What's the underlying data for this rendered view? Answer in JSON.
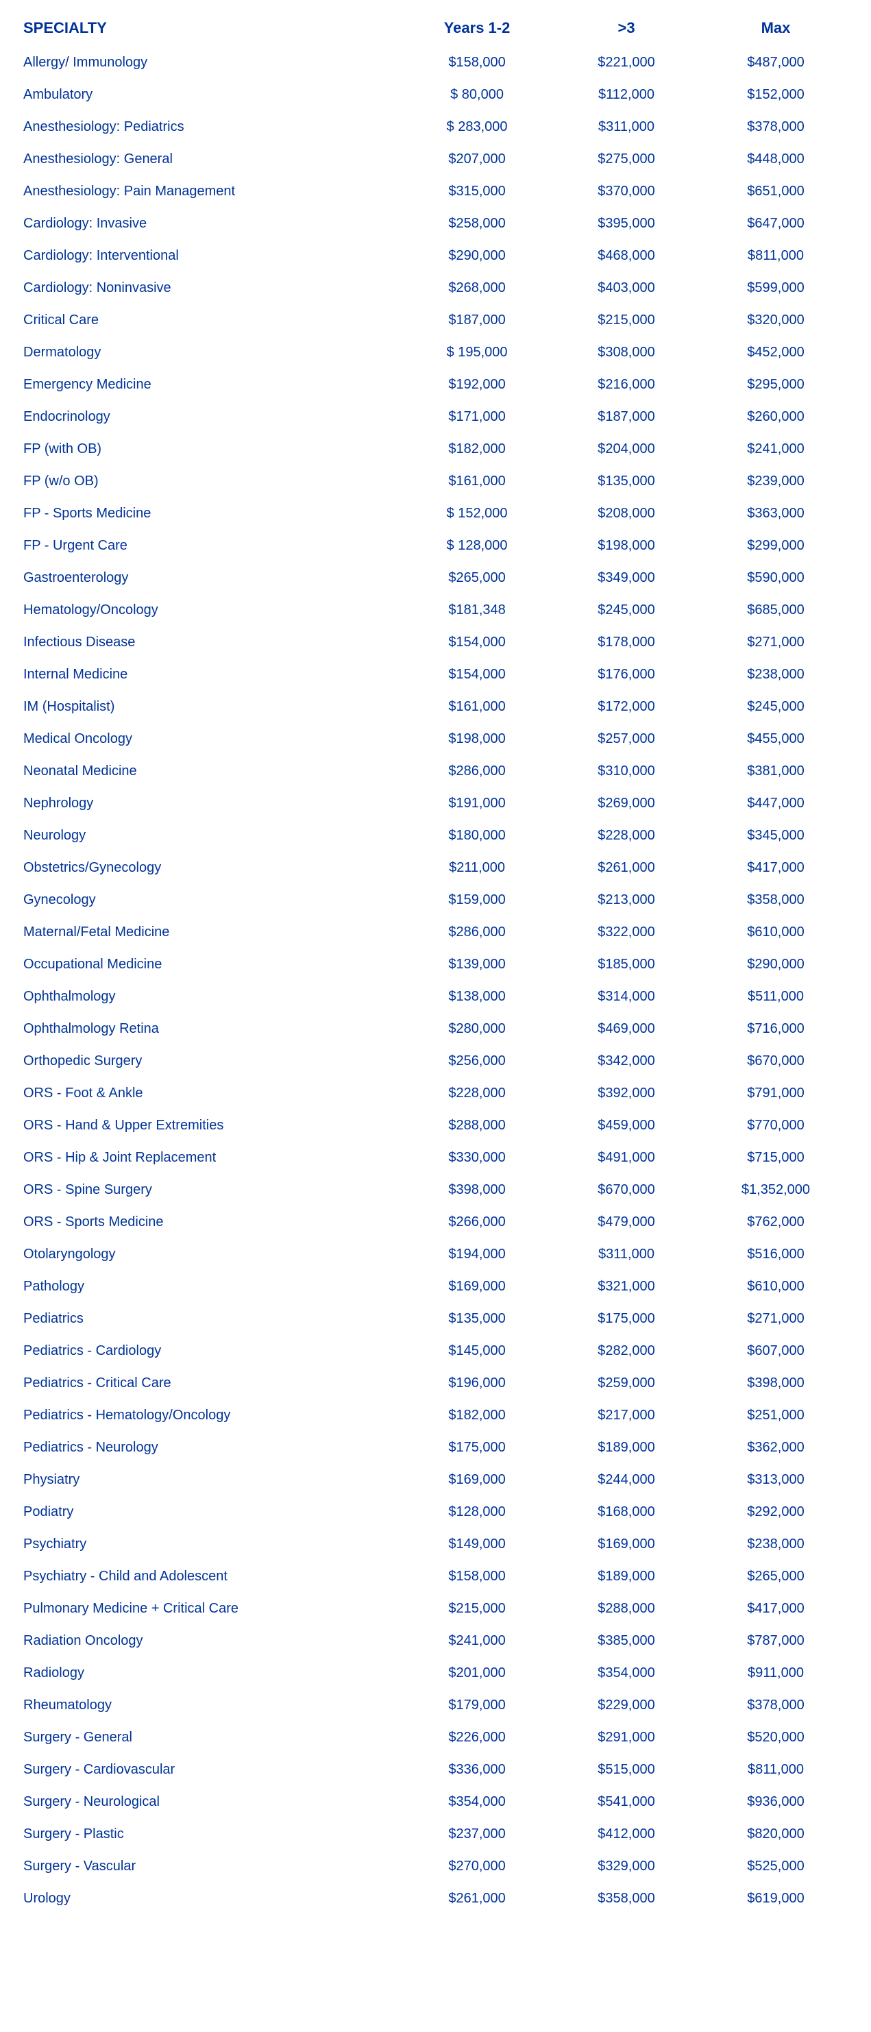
{
  "table": {
    "columns": [
      {
        "label": "SPECIALTY",
        "key": "specialty"
      },
      {
        "label": "Years 1-2",
        "key": "years12"
      },
      {
        "label": ">3",
        "key": "gt3"
      },
      {
        "label": "Max",
        "key": "max"
      }
    ],
    "text_color": "#003399",
    "background_color": "#ffffff",
    "header_fontsize": 22,
    "cell_fontsize": 20,
    "rows": [
      {
        "specialty": "Allergy/ Immunology",
        "years12": "$158,000",
        "gt3": "$221,000",
        "max": "$487,000"
      },
      {
        "specialty": "Ambulatory",
        "years12": "$ 80,000",
        "gt3": "$112,000",
        "max": "$152,000"
      },
      {
        "specialty": "Anesthesiology: Pediatrics",
        "years12": "$ 283,000",
        "gt3": "$311,000",
        "max": "$378,000"
      },
      {
        "specialty": "Anesthesiology: General",
        "years12": "$207,000",
        "gt3": "$275,000",
        "max": "$448,000"
      },
      {
        "specialty": "Anesthesiology: Pain Management",
        "years12": "$315,000",
        "gt3": "$370,000",
        "max": "$651,000"
      },
      {
        "specialty": "Cardiology: Invasive",
        "years12": "$258,000",
        "gt3": "$395,000",
        "max": "$647,000"
      },
      {
        "specialty": "Cardiology: Interventional",
        "years12": "$290,000",
        "gt3": "$468,000",
        "max": "$811,000"
      },
      {
        "specialty": "Cardiology: Noninvasive",
        "years12": "$268,000",
        "gt3": "$403,000",
        "max": "$599,000"
      },
      {
        "specialty": "Critical Care",
        "years12": "$187,000",
        "gt3": "$215,000",
        "max": "$320,000"
      },
      {
        "specialty": "Dermatology",
        "years12": "$ 195,000",
        "gt3": "$308,000",
        "max": "$452,000"
      },
      {
        "specialty": "Emergency Medicine",
        "years12": "$192,000",
        "gt3": "$216,000",
        "max": "$295,000"
      },
      {
        "specialty": "Endocrinology",
        "years12": "$171,000",
        "gt3": "$187,000",
        "max": "$260,000"
      },
      {
        "specialty": "FP (with OB)",
        "years12": "$182,000",
        "gt3": "$204,000",
        "max": "$241,000"
      },
      {
        "specialty": "FP (w/o OB)",
        "years12": "$161,000",
        "gt3": "$135,000",
        "max": "$239,000"
      },
      {
        "specialty": "FP - Sports Medicine",
        "years12": "$ 152,000",
        "gt3": "$208,000",
        "max": "$363,000"
      },
      {
        "specialty": "FP - Urgent Care",
        "years12": "$ 128,000",
        "gt3": "$198,000",
        "max": "$299,000"
      },
      {
        "specialty": "Gastroenterology",
        "years12": "$265,000",
        "gt3": "$349,000",
        "max": "$590,000"
      },
      {
        "specialty": "Hematology/Oncology",
        "years12": "$181,348",
        "gt3": "$245,000",
        "max": "$685,000"
      },
      {
        "specialty": "Infectious Disease",
        "years12": "$154,000",
        "gt3": "$178,000",
        "max": "$271,000"
      },
      {
        "specialty": "Internal Medicine",
        "years12": "$154,000",
        "gt3": "$176,000",
        "max": "$238,000"
      },
      {
        "specialty": "IM (Hospitalist)",
        "years12": "$161,000",
        "gt3": "$172,000",
        "max": "$245,000"
      },
      {
        "specialty": "Medical Oncology",
        "years12": "$198,000",
        "gt3": "$257,000",
        "max": "$455,000"
      },
      {
        "specialty": "Neonatal Medicine",
        "years12": "$286,000",
        "gt3": "$310,000",
        "max": "$381,000"
      },
      {
        "specialty": "Nephrology",
        "years12": "$191,000",
        "gt3": "$269,000",
        "max": "$447,000"
      },
      {
        "specialty": "Neurology",
        "years12": "$180,000",
        "gt3": "$228,000",
        "max": "$345,000"
      },
      {
        "specialty": "Obstetrics/Gynecology",
        "years12": "$211,000",
        "gt3": "$261,000",
        "max": "$417,000"
      },
      {
        "specialty": "Gynecology",
        "years12": "$159,000",
        "gt3": "$213,000",
        "max": "$358,000"
      },
      {
        "specialty": "Maternal/Fetal Medicine",
        "years12": "$286,000",
        "gt3": "$322,000",
        "max": "$610,000"
      },
      {
        "specialty": "Occupational Medicine",
        "years12": "$139,000",
        "gt3": "$185,000",
        "max": "$290,000"
      },
      {
        "specialty": "Ophthalmology",
        "years12": "$138,000",
        "gt3": "$314,000",
        "max": "$511,000"
      },
      {
        "specialty": "Ophthalmology Retina",
        "years12": "$280,000",
        "gt3": "$469,000",
        "max": "$716,000"
      },
      {
        "specialty": "Orthopedic Surgery",
        "years12": "$256,000",
        "gt3": "$342,000",
        "max": "$670,000"
      },
      {
        "specialty": "ORS - Foot & Ankle",
        "years12": "$228,000",
        "gt3": "$392,000",
        "max": "$791,000"
      },
      {
        "specialty": "ORS - Hand & Upper Extremities",
        "years12": "$288,000",
        "gt3": "$459,000",
        "max": "$770,000"
      },
      {
        "specialty": "ORS - Hip & Joint Replacement",
        "years12": "$330,000",
        "gt3": "$491,000",
        "max": "$715,000"
      },
      {
        "specialty": "ORS - Spine Surgery",
        "years12": "$398,000",
        "gt3": "$670,000",
        "max": "$1,352,000"
      },
      {
        "specialty": "ORS - Sports Medicine",
        "years12": "$266,000",
        "gt3": "$479,000",
        "max": "$762,000"
      },
      {
        "specialty": "Otolaryngology",
        "years12": "$194,000",
        "gt3": "$311,000",
        "max": "$516,000"
      },
      {
        "specialty": "Pathology",
        "years12": "$169,000",
        "gt3": "$321,000",
        "max": "$610,000"
      },
      {
        "specialty": "Pediatrics",
        "years12": "$135,000",
        "gt3": "$175,000",
        "max": "$271,000"
      },
      {
        "specialty": "Pediatrics - Cardiology",
        "years12": "$145,000",
        "gt3": "$282,000",
        "max": "$607,000"
      },
      {
        "specialty": "Pediatrics - Critical Care",
        "years12": "$196,000",
        "gt3": "$259,000",
        "max": "$398,000"
      },
      {
        "specialty": "Pediatrics - Hematology/Oncology",
        "years12": "$182,000",
        "gt3": "$217,000",
        "max": "$251,000"
      },
      {
        "specialty": "Pediatrics - Neurology",
        "years12": "$175,000",
        "gt3": "$189,000",
        "max": "$362,000"
      },
      {
        "specialty": "Physiatry",
        "years12": "$169,000",
        "gt3": "$244,000",
        "max": "$313,000"
      },
      {
        "specialty": "Podiatry",
        "years12": "$128,000",
        "gt3": "$168,000",
        "max": "$292,000"
      },
      {
        "specialty": "Psychiatry",
        "years12": "$149,000",
        "gt3": "$169,000",
        "max": "$238,000"
      },
      {
        "specialty": "Psychiatry - Child and Adolescent",
        "years12": "$158,000",
        "gt3": "$189,000",
        "max": "$265,000"
      },
      {
        "specialty": "Pulmonary Medicine + Critical Care",
        "years12": "$215,000",
        "gt3": "$288,000",
        "max": "$417,000"
      },
      {
        "specialty": "Radiation Oncology",
        "years12": "$241,000",
        "gt3": "$385,000",
        "max": "$787,000"
      },
      {
        "specialty": "Radiology",
        "years12": "$201,000",
        "gt3": "$354,000",
        "max": "$911,000"
      },
      {
        "specialty": "Rheumatology",
        "years12": "$179,000",
        "gt3": "$229,000",
        "max": "$378,000"
      },
      {
        "specialty": "Surgery - General",
        "years12": "$226,000",
        "gt3": "$291,000",
        "max": "$520,000"
      },
      {
        "specialty": "Surgery - Cardiovascular",
        "years12": "$336,000",
        "gt3": "$515,000",
        "max": "$811,000"
      },
      {
        "specialty": "Surgery - Neurological",
        "years12": "$354,000",
        "gt3": "$541,000",
        "max": "$936,000"
      },
      {
        "specialty": "Surgery - Plastic",
        "years12": "$237,000",
        "gt3": "$412,000",
        "max": "$820,000"
      },
      {
        "specialty": "Surgery - Vascular",
        "years12": "$270,000",
        "gt3": "$329,000",
        "max": "$525,000"
      },
      {
        "specialty": "Urology",
        "years12": "$261,000",
        "gt3": "$358,000",
        "max": "$619,000"
      }
    ]
  }
}
